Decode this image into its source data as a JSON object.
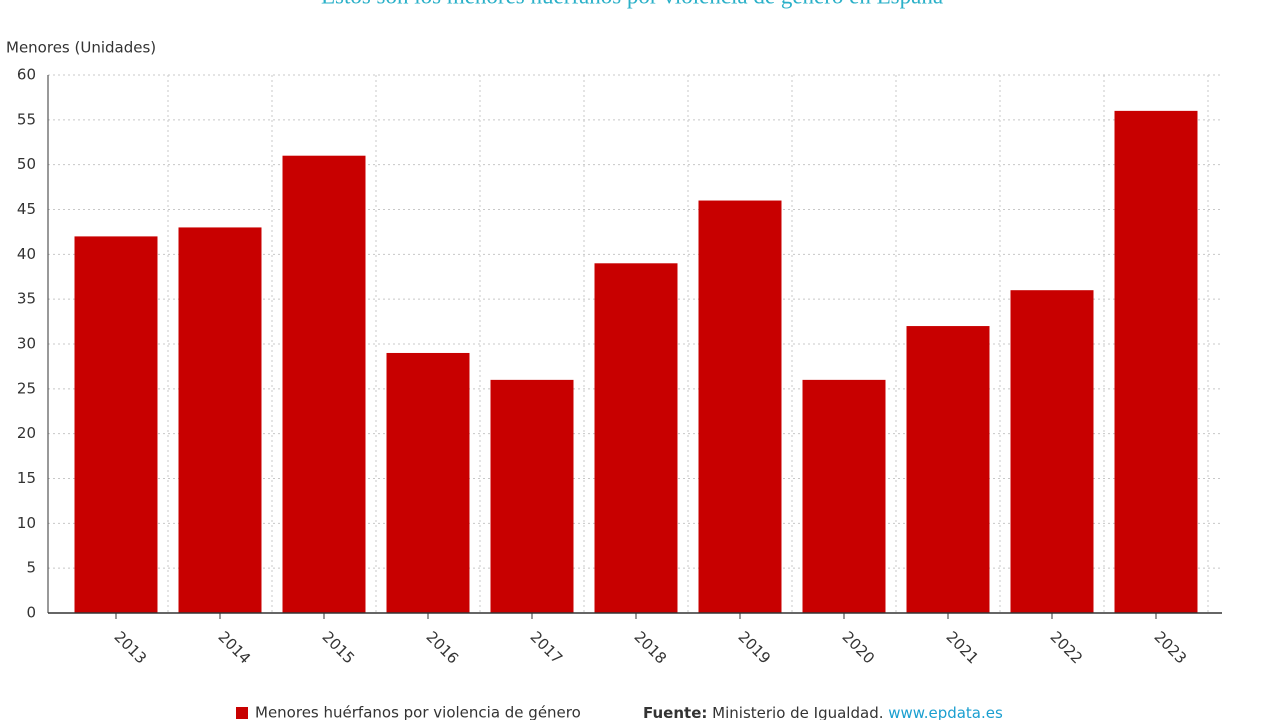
{
  "chart_data": {
    "type": "bar",
    "title": "Estos son los menores huérfanos por violencia de género en España",
    "y_label": "Menores (Unidades)",
    "categories": [
      "2013",
      "2014",
      "2015",
      "2016",
      "2017",
      "2018",
      "2019",
      "2020",
      "2021",
      "2022",
      "2023"
    ],
    "series": [
      {
        "name": "Menores huérfanos por violencia de género",
        "color": "#c80000",
        "values": [
          42,
          43,
          51,
          29,
          26,
          39,
          46,
          26,
          32,
          36,
          56
        ]
      }
    ],
    "ylim": [
      0,
      60
    ],
    "yticks": [
      0,
      5,
      10,
      15,
      20,
      25,
      30,
      35,
      40,
      45,
      50,
      55,
      60
    ],
    "grid": true,
    "source_label": "Fuente:",
    "source_text": "Ministerio de Igualdad.",
    "source_link": "www.epdata.es"
  }
}
